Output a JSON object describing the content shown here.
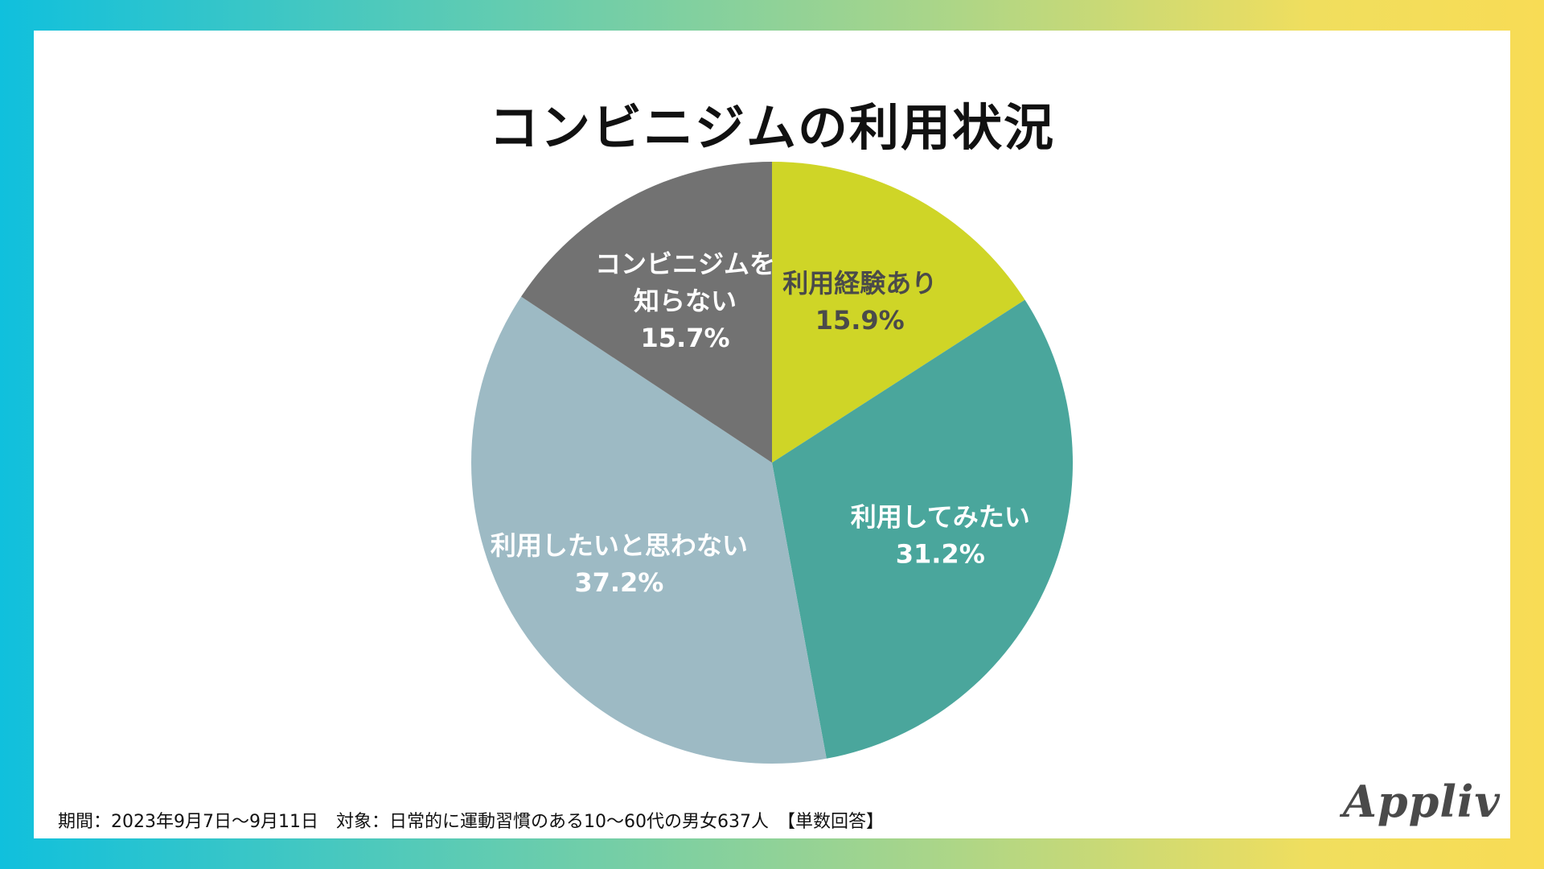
{
  "chart_data": {
    "type": "pie",
    "title": "コンビニジムの利用状況",
    "slices": [
      {
        "label_lines": [
          "利用経験あり"
        ],
        "value": 15.9,
        "value_text": "15.9%",
        "color": "#cfd527",
        "text_color": "#4a4a4a"
      },
      {
        "label_lines": [
          "利用してみたい"
        ],
        "value": 31.2,
        "value_text": "31.2%",
        "color": "#4aa69c",
        "text_color": "#ffffff"
      },
      {
        "label_lines": [
          "利用したいと思わない"
        ],
        "value": 37.2,
        "value_text": "37.2%",
        "color": "#9dbac4",
        "text_color": "#ffffff"
      },
      {
        "label_lines": [
          "コンビニジムを",
          "知らない"
        ],
        "value": 15.7,
        "value_text": "15.7%",
        "color": "#727272",
        "text_color": "#ffffff"
      }
    ]
  },
  "footer": {
    "note": "期間：2023年9月7日〜9月11日　対象：日常的に運動習慣のある10〜60代の男女637人　【単数回答】"
  },
  "brand": {
    "logo_text": "Appliv"
  }
}
